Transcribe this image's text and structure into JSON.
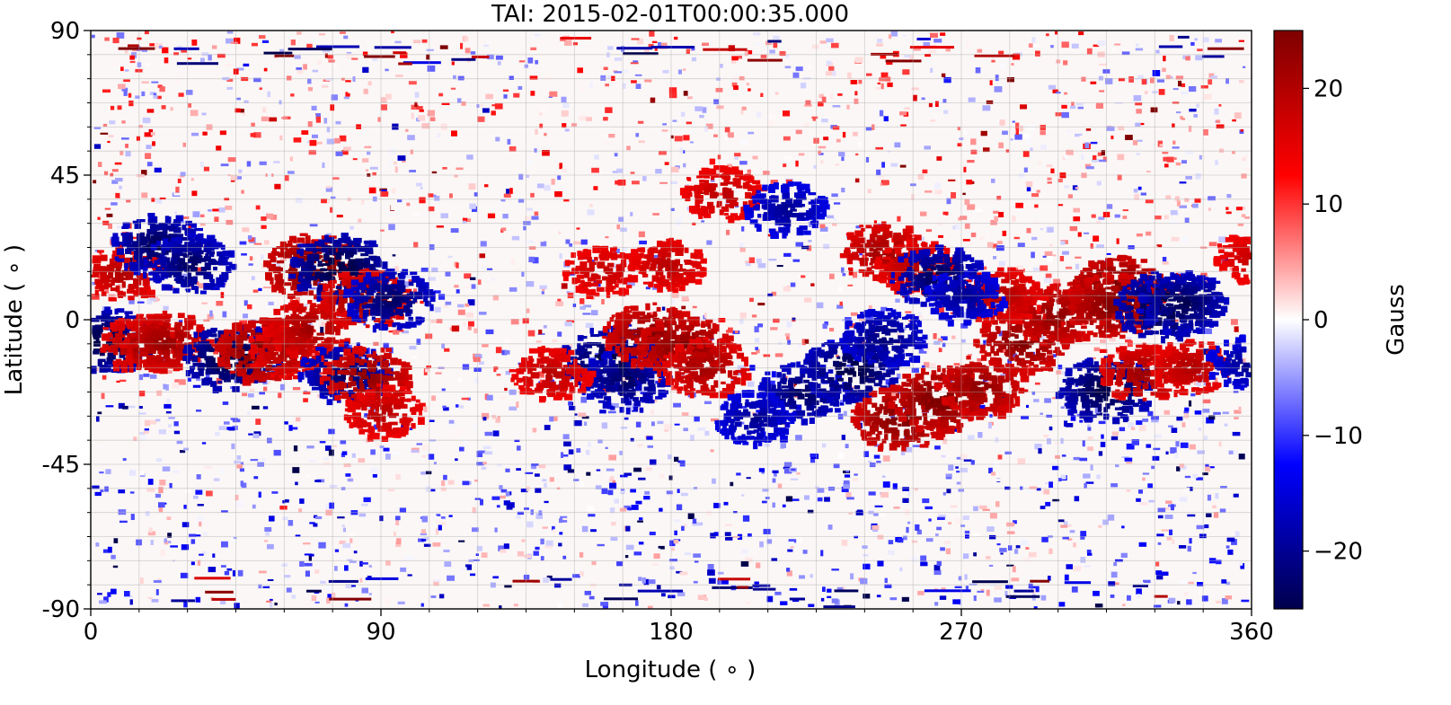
{
  "chart_data": {
    "type": "heatmap",
    "title": "TAI: 2015-02-01T00:00:35.000",
    "xlabel": "Longitude ($^\\circ$)",
    "xlabel_display": "Longitude ( ∘ )",
    "ylabel_display": "Latitude ( ∘ )",
    "xlim": [
      0,
      360
    ],
    "ylim": [
      -90,
      90
    ],
    "x_ticks": [
      0,
      90,
      180,
      270,
      360
    ],
    "y_ticks": [
      90,
      45,
      0,
      -45,
      -90
    ],
    "x_tick_labels": [
      "0",
      "90",
      "180",
      "270",
      "360"
    ],
    "y_tick_labels": [
      "90",
      "45",
      "0",
      "-45",
      "-90"
    ],
    "x_minor_step": 15,
    "y_minor_step": 7.5,
    "grid": true,
    "colorbar": {
      "label": "Gauss",
      "vmin": -25,
      "vmax": 25,
      "ticks": [
        20,
        10,
        0,
        -10,
        -20
      ],
      "tick_labels": [
        "20",
        "10",
        "0",
        "−10",
        "−20"
      ],
      "colormap": "seismic",
      "colors": [
        "#00004c",
        "#0000ff",
        "#ffffff",
        "#ff0000",
        "#7f0000"
      ]
    },
    "features": [
      {
        "type": "negative",
        "lon": 3,
        "lat": -6,
        "strength": 0.95
      },
      {
        "type": "positive",
        "lon": 9,
        "lat": 15,
        "strength": 0.6
      },
      {
        "type": "positive",
        "lon": 15,
        "lat": -7,
        "strength": 0.7
      },
      {
        "type": "positive",
        "lon": 22,
        "lat": -6,
        "strength": 0.75
      },
      {
        "type": "negative",
        "lon": 20,
        "lat": 24,
        "strength": 0.85
      },
      {
        "type": "negative",
        "lon": 30,
        "lat": 18,
        "strength": 0.8
      },
      {
        "type": "negative",
        "lon": 43,
        "lat": -11,
        "strength": 1.0
      },
      {
        "type": "positive",
        "lon": 52,
        "lat": -9,
        "strength": 0.9
      },
      {
        "type": "positive",
        "lon": 60,
        "lat": -9,
        "strength": 0.6
      },
      {
        "type": "positive",
        "lon": 68,
        "lat": 17,
        "strength": 0.95
      },
      {
        "type": "negative",
        "lon": 76,
        "lat": 17,
        "strength": 1.0
      },
      {
        "type": "positive",
        "lon": 67,
        "lat": -2,
        "strength": 0.7
      },
      {
        "type": "positive",
        "lon": 84,
        "lat": 7,
        "strength": 0.75
      },
      {
        "type": "negative",
        "lon": 92,
        "lat": 7,
        "strength": 0.8
      },
      {
        "type": "negative",
        "lon": 78,
        "lat": -16,
        "strength": 0.8
      },
      {
        "type": "positive",
        "lon": 85,
        "lat": -17,
        "strength": 0.8
      },
      {
        "type": "positive",
        "lon": 90,
        "lat": -28,
        "strength": 0.55
      },
      {
        "type": "negative",
        "lon": 160,
        "lat": -12,
        "strength": 0.95
      },
      {
        "type": "negative",
        "lon": 165,
        "lat": -18,
        "strength": 0.8
      },
      {
        "type": "positive",
        "lon": 173,
        "lat": -4,
        "strength": 0.85
      },
      {
        "type": "positive",
        "lon": 183,
        "lat": -8,
        "strength": 0.9
      },
      {
        "type": "positive",
        "lon": 190,
        "lat": -14,
        "strength": 0.7
      },
      {
        "type": "positive",
        "lon": 158,
        "lat": 16,
        "strength": 0.5
      },
      {
        "type": "positive",
        "lon": 178,
        "lat": 18,
        "strength": 0.55
      },
      {
        "type": "positive",
        "lon": 142,
        "lat": -16,
        "strength": 0.55
      },
      {
        "type": "positive",
        "lon": 195,
        "lat": 40,
        "strength": 0.55
      },
      {
        "type": "negative",
        "lon": 215,
        "lat": 35,
        "strength": 0.6
      },
      {
        "type": "negative",
        "lon": 220,
        "lat": -22,
        "strength": 0.8
      },
      {
        "type": "negative",
        "lon": 235,
        "lat": -15,
        "strength": 0.95
      },
      {
        "type": "negative",
        "lon": 245,
        "lat": -5,
        "strength": 0.7
      },
      {
        "type": "negative",
        "lon": 205,
        "lat": -30,
        "strength": 0.6
      },
      {
        "type": "positive",
        "lon": 250,
        "lat": -30,
        "strength": 0.9
      },
      {
        "type": "positive",
        "lon": 262,
        "lat": -24,
        "strength": 0.95
      },
      {
        "type": "positive",
        "lon": 275,
        "lat": -20,
        "strength": 0.8
      },
      {
        "type": "positive",
        "lon": 288,
        "lat": -6,
        "strength": 0.85
      },
      {
        "type": "positive",
        "lon": 298,
        "lat": 2,
        "strength": 0.8
      },
      {
        "type": "positive",
        "lon": 282,
        "lat": 8,
        "strength": 0.6
      },
      {
        "type": "positive",
        "lon": 245,
        "lat": 22,
        "strength": 0.7
      },
      {
        "type": "positive",
        "lon": 255,
        "lat": 17,
        "strength": 0.6
      },
      {
        "type": "negative",
        "lon": 262,
        "lat": 14,
        "strength": 0.85
      },
      {
        "type": "negative",
        "lon": 270,
        "lat": 8,
        "strength": 0.6
      },
      {
        "type": "positive",
        "lon": 318,
        "lat": 10,
        "strength": 1.0
      },
      {
        "type": "positive",
        "lon": 316,
        "lat": 5,
        "strength": 0.9
      },
      {
        "type": "negative",
        "lon": 332,
        "lat": 5,
        "strength": 1.0
      },
      {
        "type": "negative",
        "lon": 338,
        "lat": 6,
        "strength": 0.85
      },
      {
        "type": "negative",
        "lon": 314,
        "lat": -21,
        "strength": 0.95
      },
      {
        "type": "positive",
        "lon": 325,
        "lat": -16,
        "strength": 0.7
      },
      {
        "type": "positive",
        "lon": 340,
        "lat": -14,
        "strength": 0.6
      },
      {
        "type": "negative",
        "lon": 358,
        "lat": -13,
        "strength": 0.6
      },
      {
        "type": "positive",
        "lon": 360,
        "lat": 20,
        "strength": 0.5
      }
    ]
  }
}
